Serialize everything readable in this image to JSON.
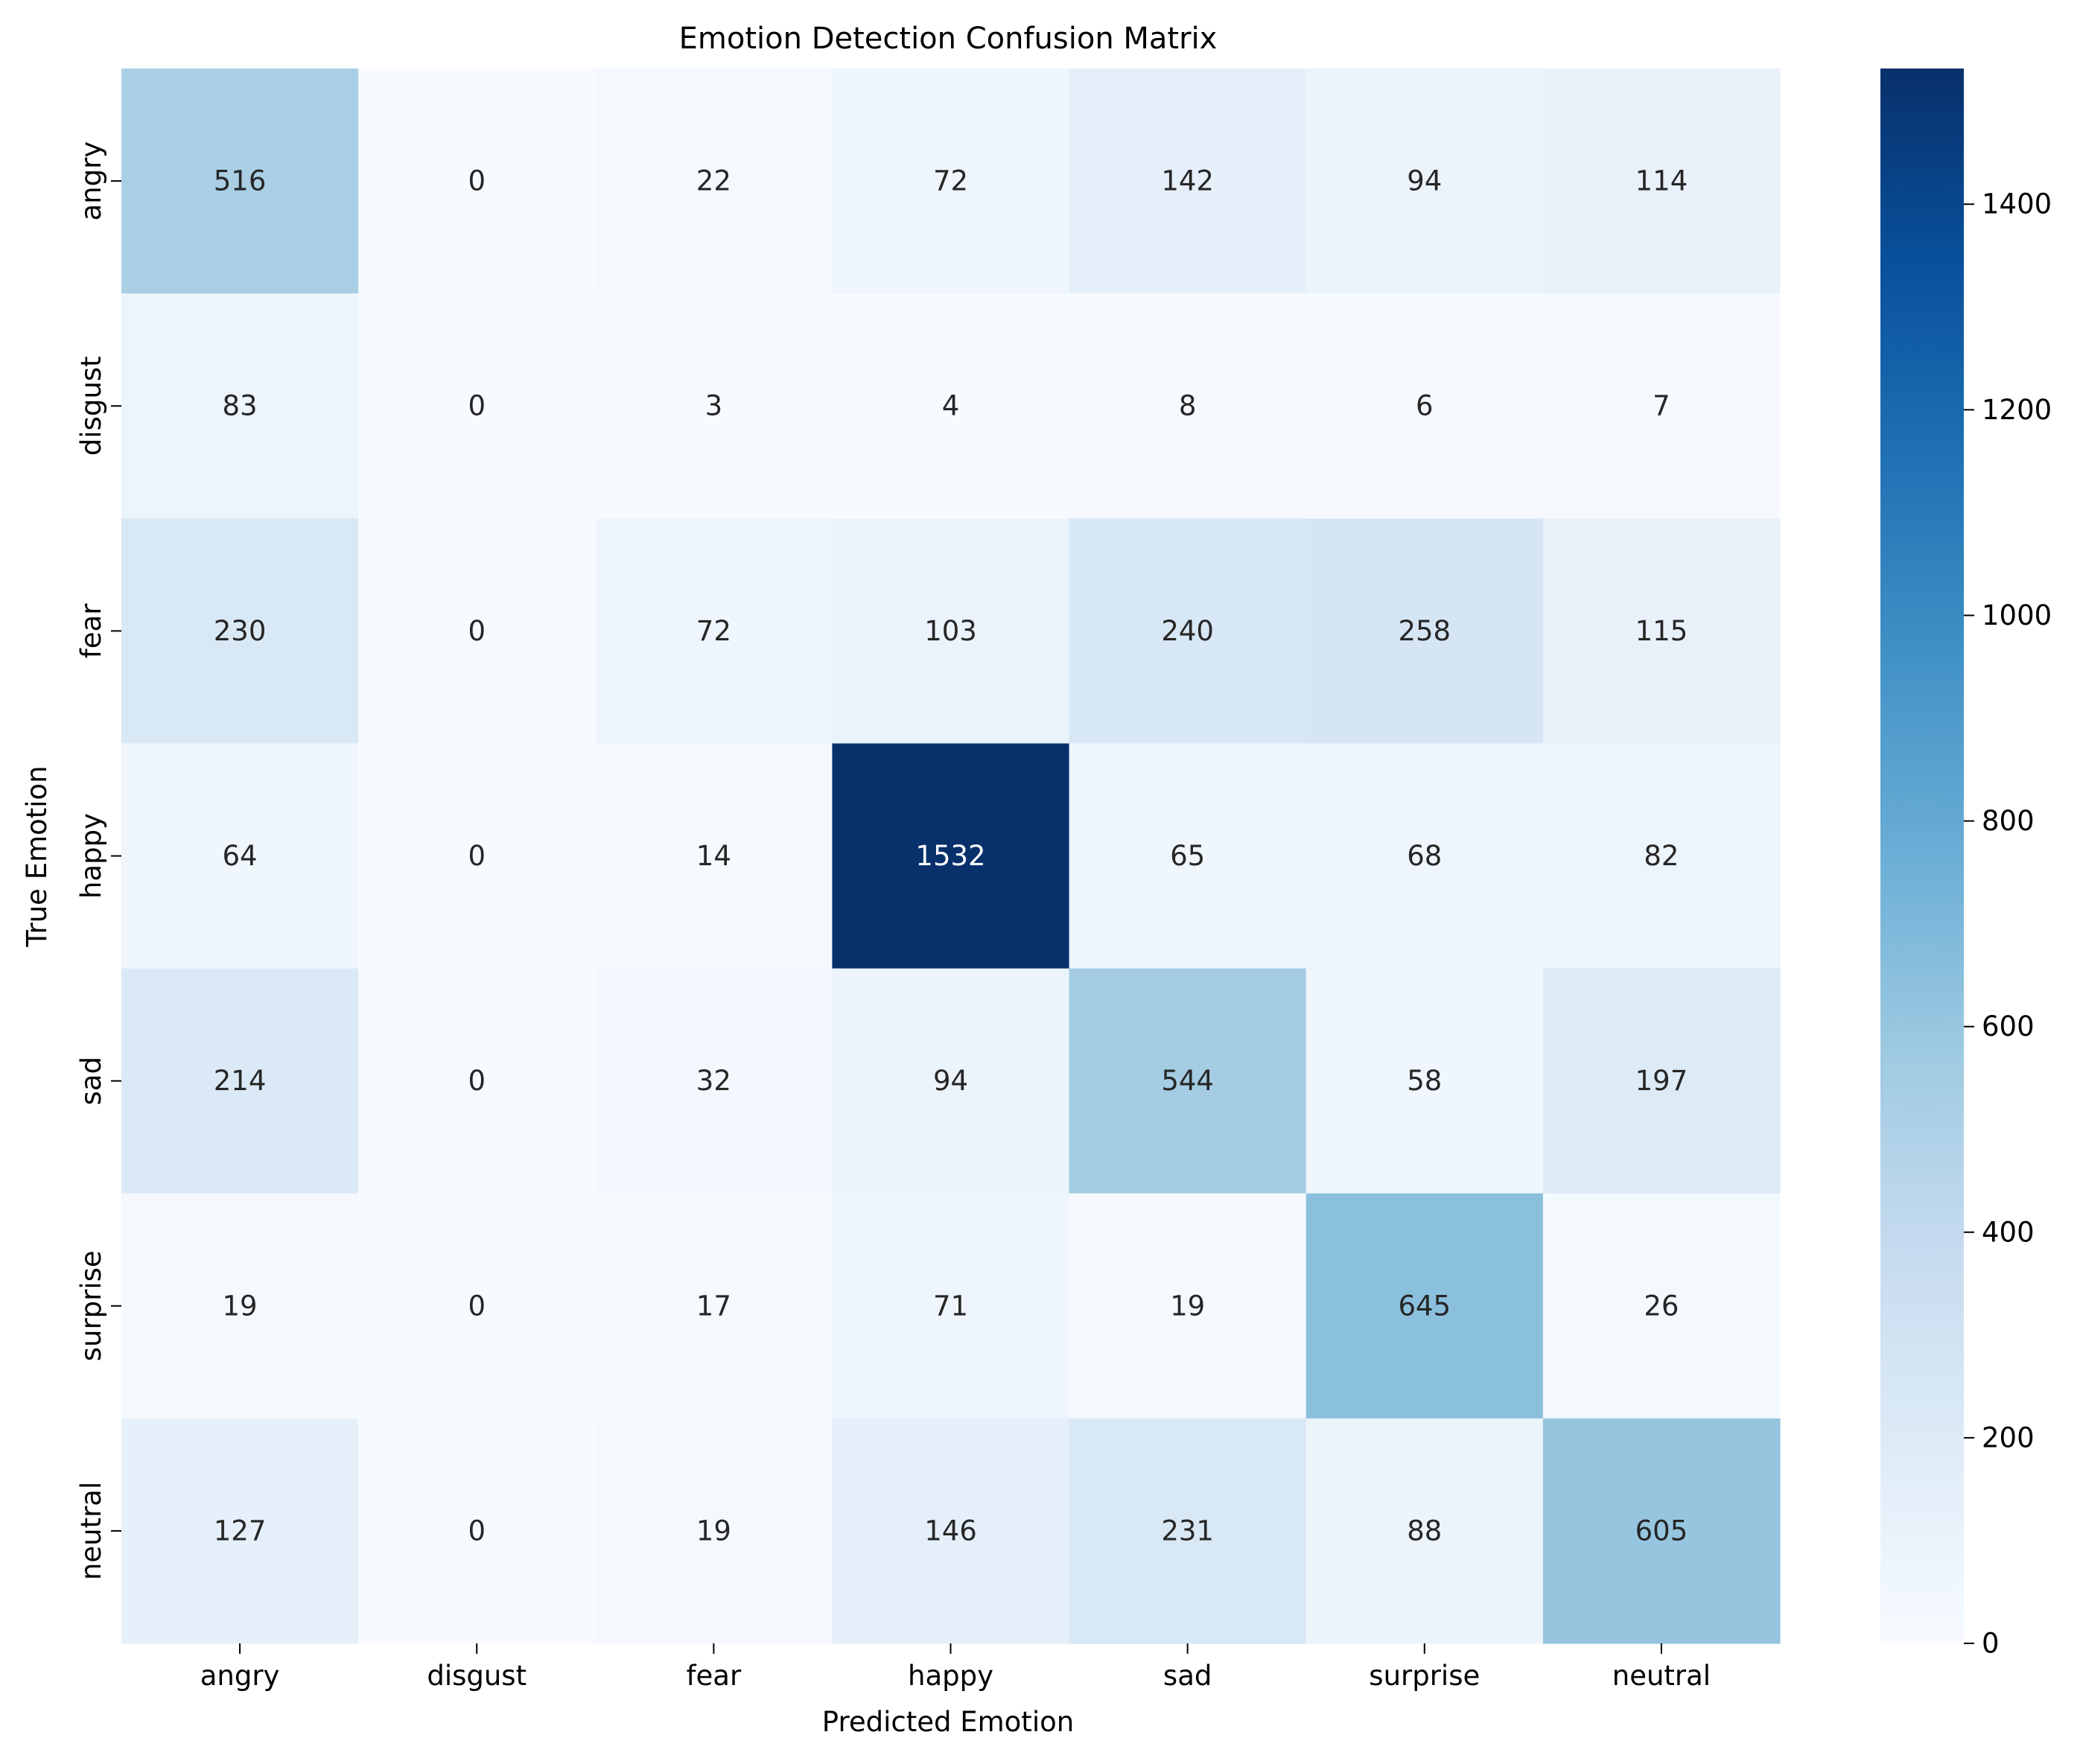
{
  "chart_data": {
    "type": "heatmap",
    "title": "Emotion Detection Confusion Matrix",
    "xlabel": "Predicted Emotion",
    "ylabel": "True Emotion",
    "x_categories": [
      "angry",
      "disgust",
      "fear",
      "happy",
      "sad",
      "surprise",
      "neutral"
    ],
    "y_categories": [
      "angry",
      "disgust",
      "fear",
      "happy",
      "sad",
      "surprise",
      "neutral"
    ],
    "values": [
      [
        516,
        0,
        22,
        72,
        142,
        94,
        114
      ],
      [
        83,
        0,
        3,
        4,
        8,
        6,
        7
      ],
      [
        230,
        0,
        72,
        103,
        240,
        258,
        115
      ],
      [
        64,
        0,
        14,
        1532,
        65,
        68,
        82
      ],
      [
        214,
        0,
        32,
        94,
        544,
        58,
        197
      ],
      [
        19,
        0,
        17,
        71,
        19,
        645,
        26
      ],
      [
        127,
        0,
        19,
        146,
        231,
        88,
        605
      ]
    ],
    "colormap": "Blues",
    "color_range": [
      0,
      1532
    ],
    "colorbar_ticks": [
      0,
      200,
      400,
      600,
      800,
      1000,
      1200,
      1400
    ],
    "colorbar_tick_labels": [
      "0",
      "200",
      "400",
      "600",
      "800",
      "1000",
      "1200",
      "1400"
    ],
    "annotate_cells": true,
    "grid": false
  }
}
